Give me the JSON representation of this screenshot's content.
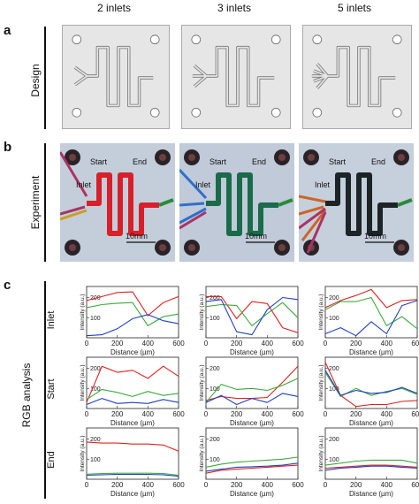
{
  "columns": [
    "2 inlets",
    "3 inlets",
    "5 inlets"
  ],
  "panels": {
    "a": {
      "letter": "a",
      "label": "Design"
    },
    "b": {
      "letter": "b",
      "label": "Experiment",
      "labels": {
        "start": "Start",
        "end": "End",
        "inlet": "Inlet",
        "scale": "10mm"
      },
      "channel_colors": [
        "#d8202a",
        "#1a6b4a",
        "#1c2426"
      ]
    },
    "c": {
      "letter": "c",
      "label": "RGB analysis",
      "rows": [
        "Inlet",
        "Start",
        "End"
      ]
    }
  },
  "axes": {
    "ylabel": "Intensity (a.u.)",
    "xlabel": "Distance (µm)",
    "xticks": [
      "0",
      "200",
      "400",
      "600"
    ],
    "yticks": [
      "100",
      "200"
    ],
    "xlim": [
      0,
      600
    ],
    "ylim": [
      0,
      255
    ]
  },
  "series_colors": {
    "red": "#e02020",
    "green": "#3caa3c",
    "blue": "#2040c0"
  },
  "chart_data": [
    {
      "type": "line",
      "row": "Inlet",
      "column": "2 inlets",
      "x": [
        0,
        100,
        200,
        300,
        400,
        500,
        600
      ],
      "series": [
        {
          "values": [
            185,
            205,
            225,
            228,
            110,
            175,
            205
          ]
        },
        {
          "values": [
            150,
            165,
            172,
            175,
            60,
            105,
            118
          ]
        },
        {
          "values": [
            10,
            15,
            45,
            95,
            115,
            85,
            70
          ]
        }
      ]
    },
    {
      "type": "line",
      "row": "Inlet",
      "column": "3 inlets",
      "x": [
        0,
        100,
        200,
        300,
        400,
        500,
        600
      ],
      "series": [
        {
          "values": [
            205,
            205,
            95,
            180,
            170,
            50,
            25
          ]
        },
        {
          "values": [
            155,
            165,
            160,
            60,
            120,
            175,
            100
          ]
        },
        {
          "values": [
            180,
            190,
            30,
            15,
            140,
            200,
            190
          ]
        }
      ]
    },
    {
      "type": "line",
      "row": "Inlet",
      "column": "5 inlets",
      "x": [
        0,
        100,
        200,
        300,
        400,
        500,
        600
      ],
      "series": [
        {
          "values": [
            150,
            185,
            210,
            240,
            150,
            185,
            190
          ]
        },
        {
          "values": [
            140,
            180,
            180,
            200,
            60,
            105,
            45
          ]
        },
        {
          "values": [
            20,
            50,
            10,
            80,
            20,
            160,
            185
          ]
        }
      ]
    },
    {
      "type": "line",
      "row": "Start",
      "column": "2 inlets",
      "x": [
        0,
        100,
        200,
        300,
        400,
        500,
        600
      ],
      "series": [
        {
          "values": [
            30,
            210,
            180,
            190,
            150,
            210,
            160
          ]
        },
        {
          "values": [
            45,
            95,
            80,
            60,
            85,
            65,
            75
          ]
        },
        {
          "values": [
            20,
            50,
            25,
            30,
            25,
            45,
            30
          ]
        }
      ]
    },
    {
      "type": "line",
      "row": "Start",
      "column": "3 inlets",
      "x": [
        0,
        100,
        200,
        300,
        400,
        500,
        600
      ],
      "series": [
        {
          "values": [
            40,
            60,
            50,
            50,
            55,
            130,
            210
          ]
        },
        {
          "values": [
            30,
            120,
            95,
            100,
            90,
            115,
            150
          ]
        },
        {
          "values": [
            30,
            65,
            20,
            50,
            30,
            75,
            60
          ]
        }
      ]
    },
    {
      "type": "line",
      "row": "Start",
      "column": "5 inlets",
      "x": [
        0,
        100,
        200,
        300,
        400,
        500,
        600
      ],
      "series": [
        {
          "values": [
            230,
            65,
            10,
            20,
            20,
            35,
            40
          ]
        },
        {
          "values": [
            180,
            60,
            100,
            65,
            85,
            100,
            70
          ]
        },
        {
          "values": [
            190,
            65,
            90,
            75,
            80,
            105,
            75
          ]
        }
      ]
    },
    {
      "type": "line",
      "row": "End",
      "column": "2 inlets",
      "x": [
        0,
        100,
        200,
        300,
        400,
        500,
        600
      ],
      "series": [
        {
          "values": [
            185,
            180,
            180,
            175,
            175,
            170,
            140
          ]
        },
        {
          "values": [
            25,
            28,
            30,
            30,
            30,
            28,
            20
          ]
        },
        {
          "values": [
            20,
            22,
            24,
            24,
            24,
            22,
            15
          ]
        }
      ]
    },
    {
      "type": "line",
      "row": "End",
      "column": "3 inlets",
      "x": [
        0,
        100,
        200,
        300,
        400,
        500,
        600
      ],
      "series": [
        {
          "values": [
            30,
            45,
            50,
            55,
            60,
            65,
            70
          ]
        },
        {
          "values": [
            60,
            75,
            85,
            90,
            95,
            100,
            110
          ]
        },
        {
          "values": [
            40,
            50,
            60,
            62,
            65,
            70,
            80
          ]
        }
      ]
    },
    {
      "type": "line",
      "row": "End",
      "column": "5 inlets",
      "x": [
        0,
        100,
        200,
        300,
        400,
        500,
        600
      ],
      "series": [
        {
          "values": [
            55,
            60,
            65,
            70,
            70,
            65,
            60
          ]
        },
        {
          "values": [
            70,
            80,
            90,
            95,
            95,
            95,
            80
          ]
        },
        {
          "values": [
            45,
            55,
            60,
            65,
            65,
            60,
            55
          ]
        }
      ]
    }
  ]
}
